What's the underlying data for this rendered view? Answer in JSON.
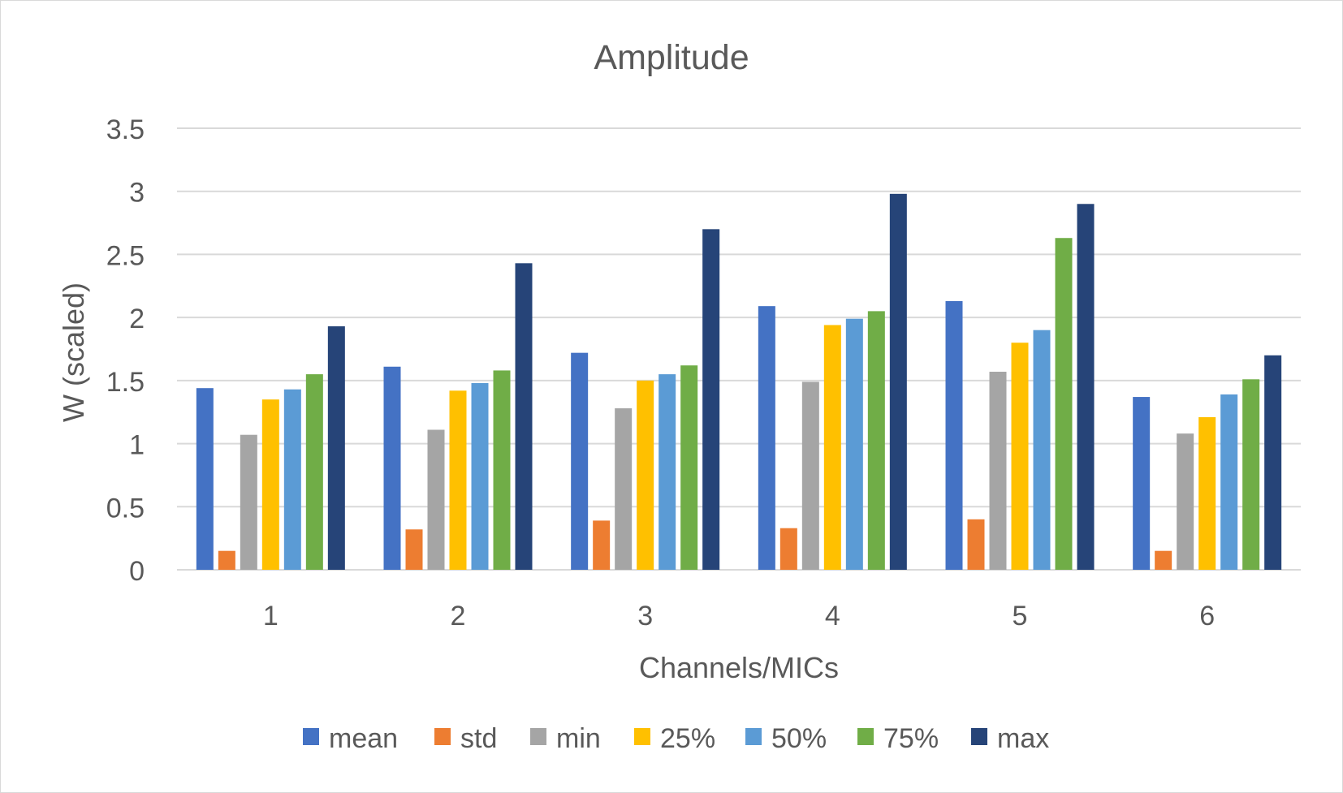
{
  "chart_data": {
    "type": "bar",
    "title": "Amplitude",
    "xlabel": "Channels/MICs",
    "ylabel": "W (scaled)",
    "ylim": [
      0,
      3.5
    ],
    "yticks": [
      0,
      0.5,
      1,
      1.5,
      2,
      2.5,
      3,
      3.5
    ],
    "ytick_labels": [
      "0",
      "0.5",
      "1",
      "1.5",
      "2",
      "2.5",
      "3",
      "3.5"
    ],
    "grid": true,
    "legend_position": "bottom",
    "categories": [
      "1",
      "2",
      "3",
      "4",
      "5",
      "6"
    ],
    "series": [
      {
        "name": "mean",
        "color": "#4472C4",
        "values": [
          1.44,
          1.61,
          1.72,
          2.09,
          2.13,
          1.37
        ]
      },
      {
        "name": "std",
        "color": "#ED7D31",
        "values": [
          0.15,
          0.32,
          0.39,
          0.33,
          0.4,
          0.15
        ]
      },
      {
        "name": "min",
        "color": "#A5A5A5",
        "values": [
          1.07,
          1.11,
          1.28,
          1.49,
          1.57,
          1.08
        ]
      },
      {
        "name": "25%",
        "color": "#FFC000",
        "values": [
          1.35,
          1.42,
          1.5,
          1.94,
          1.8,
          1.21
        ]
      },
      {
        "name": "50%",
        "color": "#5B9BD5",
        "values": [
          1.43,
          1.48,
          1.55,
          1.99,
          1.9,
          1.39
        ]
      },
      {
        "name": "75%",
        "color": "#70AD47",
        "values": [
          1.55,
          1.58,
          1.62,
          2.05,
          2.63,
          1.51
        ]
      },
      {
        "name": "max",
        "color": "#264478",
        "values": [
          1.93,
          2.43,
          2.7,
          2.98,
          2.9,
          1.7
        ]
      }
    ]
  }
}
